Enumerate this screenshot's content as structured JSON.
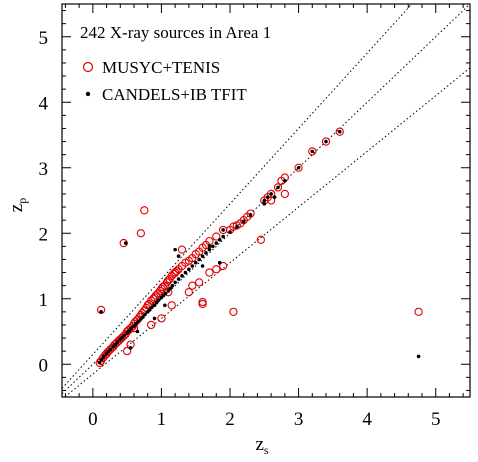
{
  "chart_data": {
    "type": "scatter",
    "title": "242 X-ray sources in Area 1",
    "xlabel": "z",
    "xlabel_sub": "s",
    "ylabel": "z",
    "ylabel_sub": "p",
    "xlim": [
      -0.45,
      5.5
    ],
    "ylim": [
      -0.5,
      5.5
    ],
    "xticks": [
      0,
      1,
      2,
      3,
      4,
      5
    ],
    "yticks": [
      0,
      1,
      2,
      3,
      4,
      5
    ],
    "legend_position": "top-left",
    "guide_lines": [
      {
        "slope": 1,
        "intercept": 0
      },
      {
        "slope": 1.15,
        "intercept": 0.15
      },
      {
        "slope": 0.85,
        "intercept": -0.15
      }
    ],
    "series": [
      {
        "name": "MUSYC+TENIS",
        "marker": "open-circle",
        "color": "#e00000",
        "x": [
          0.1,
          0.12,
          0.15,
          0.18,
          0.2,
          0.22,
          0.25,
          0.28,
          0.3,
          0.32,
          0.35,
          0.38,
          0.4,
          0.42,
          0.45,
          0.48,
          0.5,
          0.52,
          0.55,
          0.58,
          0.6,
          0.62,
          0.65,
          0.68,
          0.7,
          0.72,
          0.75,
          0.78,
          0.8,
          0.82,
          0.85,
          0.88,
          0.9,
          0.92,
          0.95,
          0.98,
          1.0,
          1.02,
          1.05,
          1.08,
          1.1,
          1.12,
          1.15,
          1.18,
          1.2,
          1.22,
          1.25,
          1.3,
          1.35,
          1.4,
          1.45,
          1.5,
          1.55,
          1.6,
          1.65,
          1.7,
          1.8,
          1.9,
          2.0,
          2.05,
          2.1,
          2.15,
          2.2,
          2.25,
          2.3,
          2.5,
          2.55,
          2.6,
          2.7,
          2.75,
          2.8,
          3.0,
          3.2,
          3.4,
          3.6,
          0.12,
          0.45,
          0.7,
          0.75,
          1.1,
          1.2,
          1.3,
          1.6,
          1.6,
          1.8,
          1.9,
          2.05,
          2.45,
          4.75,
          0.5,
          0.55,
          0.6,
          0.85,
          1.0,
          1.15,
          1.4,
          1.45,
          1.55,
          1.7,
          2.6,
          2.8
        ],
        "y": [
          0.02,
          0.05,
          0.1,
          0.14,
          0.16,
          0.19,
          0.22,
          0.25,
          0.27,
          0.3,
          0.33,
          0.36,
          0.38,
          0.4,
          0.43,
          0.46,
          0.5,
          0.52,
          0.55,
          0.58,
          0.62,
          0.65,
          0.68,
          0.72,
          0.75,
          0.78,
          0.82,
          0.86,
          0.9,
          0.92,
          0.97,
          1.0,
          1.02,
          1.05,
          1.08,
          1.12,
          1.15,
          1.18,
          1.2,
          1.25,
          1.28,
          1.3,
          1.35,
          1.38,
          1.4,
          1.42,
          1.45,
          1.5,
          1.55,
          1.58,
          1.62,
          1.68,
          1.72,
          1.78,
          1.82,
          1.88,
          1.95,
          2.05,
          2.05,
          2.1,
          2.12,
          2.15,
          2.2,
          2.25,
          2.3,
          2.5,
          2.55,
          2.6,
          2.7,
          2.8,
          2.85,
          3.0,
          3.25,
          3.4,
          3.55,
          0.83,
          1.85,
          2.0,
          2.35,
          1.1,
          1.4,
          1.75,
          0.95,
          0.92,
          1.45,
          1.5,
          0.8,
          1.9,
          0.8,
          0.2,
          0.3,
          0.55,
          0.6,
          0.7,
          0.9,
          1.1,
          1.2,
          1.25,
          1.4,
          2.5,
          2.6
        ]
      },
      {
        "name": "CANDELS+IB TFIT",
        "marker": "filled-dot",
        "color": "#000000",
        "x": [
          0.1,
          0.13,
          0.16,
          0.2,
          0.23,
          0.26,
          0.3,
          0.33,
          0.36,
          0.4,
          0.43,
          0.46,
          0.5,
          0.53,
          0.56,
          0.6,
          0.63,
          0.66,
          0.7,
          0.73,
          0.76,
          0.8,
          0.83,
          0.86,
          0.9,
          0.93,
          0.96,
          1.0,
          1.03,
          1.06,
          1.1,
          1.13,
          1.16,
          1.2,
          1.25,
          1.3,
          1.35,
          1.4,
          1.45,
          1.5,
          1.55,
          1.6,
          1.65,
          1.7,
          1.75,
          1.8,
          1.85,
          1.9,
          2.0,
          2.1,
          2.2,
          2.3,
          2.5,
          2.55,
          2.6,
          2.7,
          2.8,
          3.0,
          3.2,
          3.4,
          3.6,
          0.12,
          0.48,
          1.2,
          1.25,
          1.7,
          1.85,
          1.9,
          2.5,
          4.75,
          0.55,
          0.65,
          0.9,
          1.05,
          1.6,
          2.65
        ],
        "y": [
          0.03,
          0.07,
          0.12,
          0.16,
          0.2,
          0.23,
          0.27,
          0.3,
          0.34,
          0.38,
          0.41,
          0.44,
          0.48,
          0.51,
          0.55,
          0.58,
          0.62,
          0.65,
          0.69,
          0.72,
          0.76,
          0.8,
          0.83,
          0.87,
          0.9,
          0.94,
          0.98,
          1.02,
          1.05,
          1.08,
          1.12,
          1.16,
          1.2,
          1.25,
          1.3,
          1.35,
          1.4,
          1.45,
          1.5,
          1.55,
          1.6,
          1.65,
          1.7,
          1.75,
          1.8,
          1.85,
          1.9,
          1.95,
          2.02,
          2.1,
          2.18,
          2.28,
          2.5,
          2.55,
          2.6,
          2.7,
          2.8,
          3.0,
          3.25,
          3.4,
          3.55,
          0.8,
          1.85,
          1.75,
          1.65,
          1.8,
          1.55,
          2.05,
          2.45,
          0.12,
          0.25,
          0.5,
          0.7,
          0.9,
          1.5,
          2.55
        ]
      }
    ]
  }
}
